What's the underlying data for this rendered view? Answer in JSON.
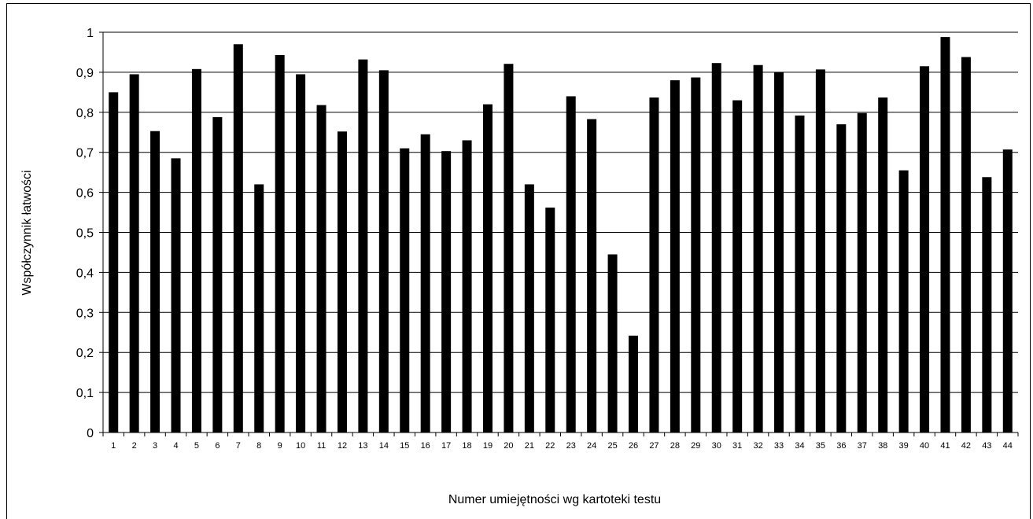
{
  "chart_data": {
    "type": "bar",
    "title": "",
    "xlabel": "Numer umiejętności wg kartoteki testu",
    "ylabel": "Współczynnik łatwości",
    "ylim": [
      0,
      1
    ],
    "yticks": [
      "0",
      "0,1",
      "0,2",
      "0,3",
      "0,4",
      "0,5",
      "0,6",
      "0,7",
      "0,8",
      "0,9",
      "1"
    ],
    "grid": true,
    "bar_color": "#000000",
    "categories": [
      "1",
      "2",
      "3",
      "4",
      "5",
      "6",
      "7",
      "8",
      "9",
      "10",
      "11",
      "12",
      "13",
      "14",
      "15",
      "16",
      "17",
      "18",
      "19",
      "20",
      "21",
      "22",
      "23",
      "24",
      "25",
      "26",
      "27",
      "28",
      "29",
      "30",
      "31",
      "32",
      "33",
      "34",
      "35",
      "36",
      "37",
      "38",
      "39",
      "40",
      "41",
      "42",
      "43",
      "44"
    ],
    "values": [
      0.85,
      0.895,
      0.753,
      0.685,
      0.908,
      0.788,
      0.97,
      0.62,
      0.943,
      0.895,
      0.818,
      0.752,
      0.932,
      0.905,
      0.71,
      0.745,
      0.703,
      0.73,
      0.82,
      0.921,
      0.62,
      0.562,
      0.84,
      0.783,
      0.445,
      0.242,
      0.837,
      0.88,
      0.887,
      0.923,
      0.83,
      0.918,
      0.9,
      0.792,
      0.907,
      0.77,
      0.798,
      0.837,
      0.655,
      0.915,
      0.988,
      0.938,
      0.638,
      0.707
    ]
  }
}
